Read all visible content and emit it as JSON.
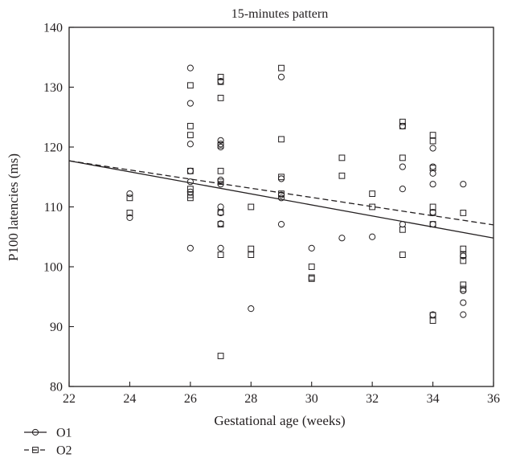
{
  "chart_data": {
    "type": "scatter",
    "title": "15-minutes pattern",
    "xlabel": "Gestational age (weeks)",
    "ylabel": "P100 latencies (ms)",
    "xlim": [
      22,
      36
    ],
    "ylim": [
      80,
      140
    ],
    "xticks": [
      22,
      24,
      26,
      28,
      30,
      32,
      34,
      36
    ],
    "yticks": [
      80,
      90,
      100,
      110,
      120,
      130,
      140
    ],
    "grid": false,
    "legend_position": "bottom-left",
    "series": [
      {
        "name": "O1",
        "marker": "circle",
        "line_style": "solid",
        "color": "#231f20",
        "fit_line": {
          "x": [
            22,
            36
          ],
          "y": [
            117.7,
            104.8
          ]
        },
        "points": [
          [
            24,
            112.2
          ],
          [
            24,
            108.2
          ],
          [
            26,
            133.2
          ],
          [
            26,
            127.3
          ],
          [
            26,
            120.5
          ],
          [
            26,
            116
          ],
          [
            26,
            114.2
          ],
          [
            26,
            112.5
          ],
          [
            26,
            103.1
          ],
          [
            27,
            131
          ],
          [
            27,
            121.1
          ],
          [
            27,
            120.5
          ],
          [
            27,
            120
          ],
          [
            27,
            114.5
          ],
          [
            27,
            113.8
          ],
          [
            27,
            110
          ],
          [
            27,
            109
          ],
          [
            27,
            103.1
          ],
          [
            27,
            107.2
          ],
          [
            28,
            93
          ],
          [
            29,
            131.7
          ],
          [
            29,
            114.7
          ],
          [
            29,
            112
          ],
          [
            29,
            111.5
          ],
          [
            29,
            107.1
          ],
          [
            30,
            103.1
          ],
          [
            31,
            104.8
          ],
          [
            32,
            105
          ],
          [
            33,
            123.5
          ],
          [
            33,
            116.7
          ],
          [
            33,
            113
          ],
          [
            33,
            107.1
          ],
          [
            34,
            119.8
          ],
          [
            34,
            116.7
          ],
          [
            34,
            115.6
          ],
          [
            34,
            113.8
          ],
          [
            34,
            109.1
          ],
          [
            34,
            92
          ],
          [
            34,
            107.1
          ],
          [
            35,
            113.8
          ],
          [
            35,
            101.8
          ],
          [
            35,
            96
          ],
          [
            35,
            94
          ],
          [
            35,
            92
          ]
        ]
      },
      {
        "name": "O2",
        "marker": "square",
        "line_style": "dashed",
        "color": "#231f20",
        "fit_line": {
          "x": [
            22,
            36
          ],
          "y": [
            117.7,
            107
          ]
        },
        "points": [
          [
            24,
            111.5
          ],
          [
            24,
            109
          ],
          [
            26,
            130.3
          ],
          [
            26,
            123.5
          ],
          [
            26,
            122
          ],
          [
            26,
            116
          ],
          [
            26,
            113
          ],
          [
            26,
            112
          ],
          [
            26,
            111.5
          ],
          [
            27,
            131.7
          ],
          [
            27,
            130.9
          ],
          [
            27,
            128.2
          ],
          [
            27,
            120.3
          ],
          [
            27,
            116
          ],
          [
            27,
            114.2
          ],
          [
            27,
            109.1
          ],
          [
            27,
            107.1
          ],
          [
            27,
            102
          ],
          [
            27,
            85.1
          ],
          [
            28,
            110
          ],
          [
            28,
            103
          ],
          [
            28,
            102
          ],
          [
            29,
            133.2
          ],
          [
            29,
            121.3
          ],
          [
            29,
            115
          ],
          [
            29,
            112.2
          ],
          [
            30,
            100
          ],
          [
            30,
            98.2
          ],
          [
            30,
            98
          ],
          [
            31,
            118.2
          ],
          [
            31,
            115.2
          ],
          [
            32,
            112.2
          ],
          [
            32,
            110
          ],
          [
            33,
            124.2
          ],
          [
            33,
            123.5
          ],
          [
            33,
            118.2
          ],
          [
            33,
            106.2
          ],
          [
            33,
            102
          ],
          [
            34,
            122
          ],
          [
            34,
            121
          ],
          [
            34,
            116.5
          ],
          [
            34,
            110
          ],
          [
            34,
            109
          ],
          [
            34,
            107.1
          ],
          [
            34,
            91.9
          ],
          [
            34,
            91
          ],
          [
            35,
            109
          ],
          [
            35,
            103
          ],
          [
            35,
            102
          ],
          [
            35,
            101
          ],
          [
            35,
            97
          ],
          [
            35,
            96.3
          ]
        ]
      }
    ]
  }
}
